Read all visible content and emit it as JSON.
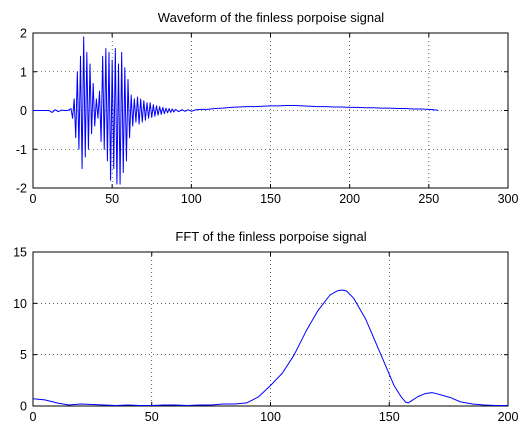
{
  "chart_data": [
    {
      "type": "line",
      "title": "Waveform of the finless porpoise signal",
      "xlabel": "",
      "ylabel": "",
      "xlim": [
        0,
        300
      ],
      "ylim": [
        -2,
        2
      ],
      "xticks": [
        0,
        50,
        100,
        150,
        200,
        250,
        300
      ],
      "yticks": [
        -2,
        -1,
        0,
        1,
        2
      ],
      "grid": true,
      "line_color": "#0000ff",
      "series": [
        {
          "x": [
            0,
            5,
            10,
            12,
            14,
            16,
            18,
            20,
            22,
            24,
            25,
            26,
            27,
            28,
            29,
            30,
            31,
            32,
            33,
            34,
            35,
            36,
            37,
            38,
            39,
            40,
            41,
            42,
            43,
            44,
            45,
            46,
            47,
            48,
            49,
            50,
            51,
            52,
            53,
            54,
            55,
            56,
            57,
            58,
            59,
            60,
            61,
            62,
            63,
            64,
            65,
            66,
            67,
            68,
            69,
            70,
            71,
            72,
            73,
            74,
            75,
            76,
            77,
            78,
            79,
            80,
            81,
            82,
            83,
            84,
            85,
            86,
            87,
            88,
            89,
            90,
            92,
            94,
            96,
            98,
            100,
            103,
            106,
            110,
            115,
            120,
            125,
            130,
            135,
            140,
            145,
            150,
            155,
            160,
            165,
            170,
            175,
            180,
            185,
            190,
            195,
            200,
            205,
            210,
            215,
            220,
            225,
            230,
            235,
            240,
            245,
            250,
            253,
            255,
            256
          ],
          "y": [
            0,
            0,
            0,
            -0.05,
            0.02,
            -0.03,
            0.01,
            0,
            0,
            0.05,
            -0.2,
            0.3,
            -0.7,
            1.0,
            -1.0,
            1.4,
            -1.5,
            1.9,
            -1.2,
            1.5,
            -1.0,
            1.2,
            -0.6,
            0.7,
            -0.4,
            0.3,
            -0.2,
            0.5,
            -0.8,
            1.4,
            -1.0,
            1.6,
            -1.3,
            1.5,
            -1.8,
            1.3,
            -1.5,
            1.6,
            -1.9,
            1.2,
            -1.9,
            1.5,
            -1.6,
            1.1,
            -1.3,
            0.8,
            -0.7,
            0.4,
            -0.4,
            0.3,
            -0.3,
            0.35,
            -0.35,
            0.3,
            -0.3,
            0.25,
            -0.25,
            0.2,
            -0.2,
            0.2,
            -0.18,
            0.15,
            -0.15,
            0.12,
            -0.12,
            0.1,
            -0.1,
            0.08,
            -0.08,
            0.06,
            -0.06,
            0.05,
            -0.05,
            0.04,
            -0.04,
            0.03,
            -0.03,
            0.02,
            -0.02,
            0.02,
            -0.02,
            0.02,
            0.03,
            0.03,
            0.05,
            0.06,
            0.08,
            0.09,
            0.1,
            0.1,
            0.11,
            0.12,
            0.12,
            0.13,
            0.13,
            0.12,
            0.11,
            0.1,
            0.1,
            0.09,
            0.09,
            0.08,
            0.08,
            0.07,
            0.07,
            0.06,
            0.06,
            0.05,
            0.05,
            0.04,
            0.04,
            0.03,
            0.02,
            0.01,
            0
          ]
        }
      ]
    },
    {
      "type": "line",
      "title": "FFT of the finless porpoise signal",
      "xlabel": "",
      "ylabel": "",
      "xlim": [
        0,
        200
      ],
      "ylim": [
        0,
        15
      ],
      "xticks": [
        0,
        50,
        100,
        150,
        200
      ],
      "yticks": [
        0,
        5,
        10,
        15
      ],
      "grid": true,
      "line_color": "#0000ff",
      "series": [
        {
          "x": [
            0,
            5,
            10,
            15,
            20,
            25,
            30,
            35,
            40,
            45,
            50,
            55,
            60,
            65,
            70,
            75,
            80,
            85,
            90,
            95,
            100,
            105,
            110,
            115,
            120,
            125,
            128,
            130,
            132,
            135,
            140,
            145,
            150,
            152,
            155,
            157,
            158,
            160,
            162,
            165,
            168,
            170,
            173,
            176,
            180,
            185,
            190,
            195,
            200
          ],
          "y": [
            0.7,
            0.6,
            0.3,
            0.1,
            0.2,
            0.15,
            0.1,
            0.05,
            0.1,
            0.05,
            0.05,
            0.1,
            0.1,
            0.05,
            0.1,
            0.1,
            0.2,
            0.2,
            0.3,
            0.9,
            2.0,
            3.2,
            5.0,
            7.3,
            9.3,
            10.8,
            11.2,
            11.3,
            11.2,
            10.5,
            8.5,
            5.8,
            3.1,
            2.0,
            0.9,
            0.35,
            0.3,
            0.6,
            0.9,
            1.2,
            1.3,
            1.2,
            1.0,
            0.8,
            0.4,
            0.2,
            0.1,
            0.05,
            0.05
          ]
        }
      ]
    }
  ]
}
